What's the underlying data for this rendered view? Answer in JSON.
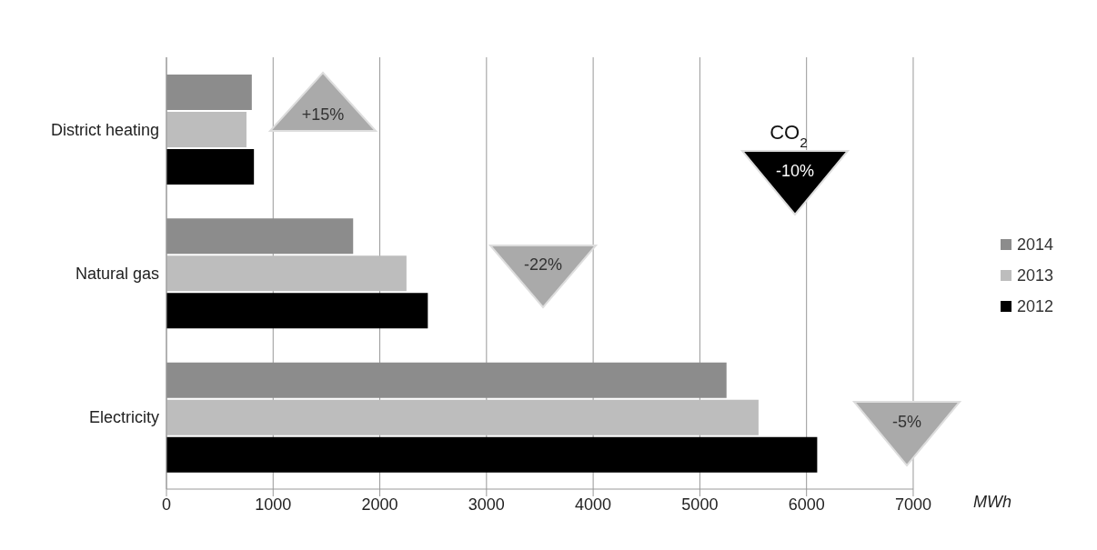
{
  "chart_data": {
    "type": "bar",
    "orientation": "horizontal",
    "categories": [
      "District heating",
      "Natural gas",
      "Electricity"
    ],
    "series": [
      {
        "name": "2014",
        "color": "#8c8c8c",
        "values": [
          800,
          1750,
          5250
        ]
      },
      {
        "name": "2013",
        "color": "#bdbdbd",
        "values": [
          750,
          2250,
          5550
        ]
      },
      {
        "name": "2012",
        "color": "#000000",
        "values": [
          820,
          2450,
          6100
        ]
      }
    ],
    "xlim": [
      0,
      7000
    ],
    "xticks": [
      0,
      1000,
      2000,
      3000,
      4000,
      5000,
      6000,
      7000
    ],
    "xlabel": "MWh",
    "grid": "x",
    "legend": "right",
    "annotations": [
      "+15%",
      "-22%",
      "CO$_{2}$",
      "-10%",
      "-5%"
    ]
  }
}
